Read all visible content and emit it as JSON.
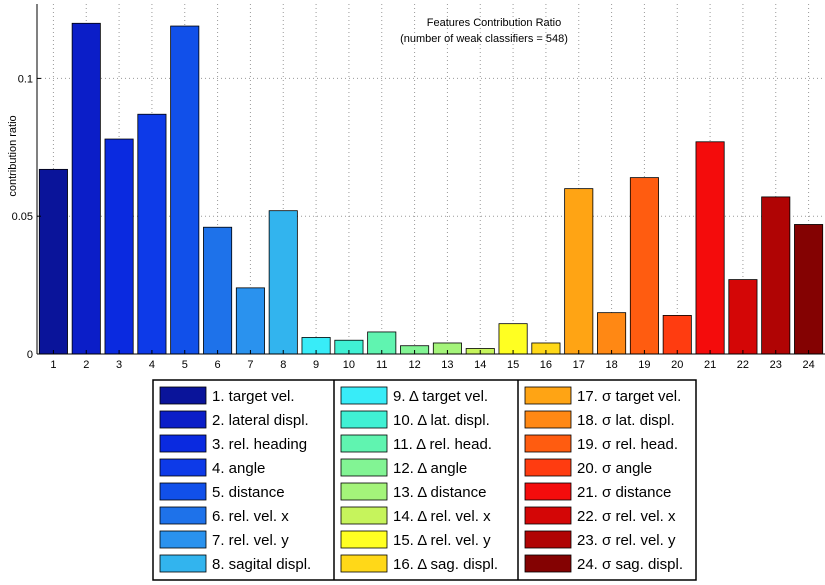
{
  "chart_data": {
    "type": "bar",
    "title": "Features Contribution Ratio",
    "subtitle": "(number of weak classifiers = 548)",
    "xlabel": "",
    "ylabel": "contribution ratio",
    "ylim": [
      0,
      0.127
    ],
    "yticks": [
      {
        "value": 0,
        "label": "0"
      },
      {
        "value": 0.05,
        "label": "0.05"
      },
      {
        "value": 0.1,
        "label": "0.1"
      }
    ],
    "grid": true,
    "categories": [
      "1",
      "2",
      "3",
      "4",
      "5",
      "6",
      "7",
      "8",
      "9",
      "10",
      "11",
      "12",
      "13",
      "14",
      "15",
      "16",
      "17",
      "18",
      "19",
      "20",
      "21",
      "22",
      "23",
      "24"
    ],
    "values": [
      0.067,
      0.12,
      0.078,
      0.087,
      0.119,
      0.046,
      0.024,
      0.052,
      0.006,
      0.005,
      0.008,
      0.003,
      0.004,
      0.002,
      0.011,
      0.004,
      0.06,
      0.015,
      0.064,
      0.014,
      0.077,
      0.027,
      0.057,
      0.047
    ],
    "colors": [
      "#0a149a",
      "#0b1ec8",
      "#0a2ae0",
      "#0d3ae8",
      "#1150ea",
      "#1e72ea",
      "#2a92ee",
      "#32b4ee",
      "#38ecf8",
      "#40f0d4",
      "#60f4b0",
      "#82f494",
      "#a4f47a",
      "#c6f45c",
      "#ffff22",
      "#ffd818",
      "#ffa414",
      "#ff8814",
      "#ff5c10",
      "#ff3c10",
      "#f40c0c",
      "#d40606",
      "#b00404",
      "#840202"
    ],
    "legend": {
      "placement": "bottom",
      "columns": [
        [
          "1. target vel.",
          "2. lateral displ.",
          "3. rel. heading",
          "4. angle",
          "5. distance",
          "6. rel. vel. x",
          "7. rel. vel. y",
          "8. sagital displ."
        ],
        [
          "9. Δ target vel.",
          "10. Δ lat. displ.",
          "11. Δ rel. head.",
          "12. Δ angle",
          "13. Δ distance",
          "14. Δ rel. vel. x",
          "15. Δ rel. vel. y",
          "16. Δ sag. displ."
        ],
        [
          "17. σ target vel.",
          "18. σ lat. displ.",
          "19. σ rel. head.",
          "20. σ angle",
          "21. σ distance",
          "22. σ rel. vel. x",
          "23. σ rel. vel. y",
          "24. σ sag. displ."
        ]
      ]
    }
  }
}
